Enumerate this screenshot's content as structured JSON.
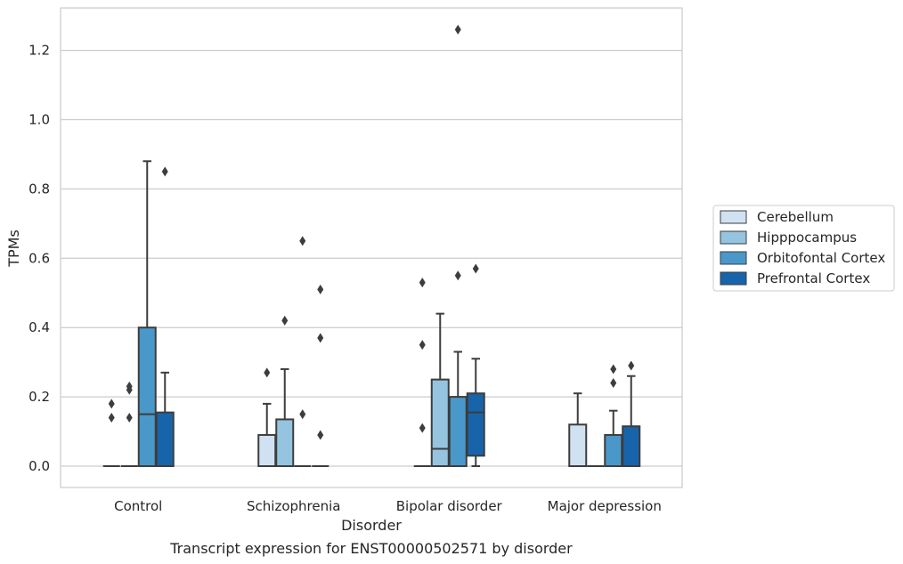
{
  "chart_data": {
    "type": "box",
    "xlabel": "Disorder",
    "ylabel": "TPMs",
    "caption": "Transcript expression for ENST00000502571 by disorder",
    "categories": [
      "Control",
      "Schizophrenia",
      "Bipolar disorder",
      "Major depression"
    ],
    "ylim": [
      -0.06,
      1.325
    ],
    "yticks": [
      0.0,
      0.2,
      0.4,
      0.6,
      0.8,
      1.0,
      1.2
    ],
    "ytick_labels": [
      "0.0",
      "0.2",
      "0.4",
      "0.6",
      "0.8",
      "1.0",
      "1.2"
    ],
    "grid": "horizontal",
    "legend_position": "right",
    "series": [
      {
        "name": "Cerebellum",
        "color": "#d0e1f2",
        "boxes": [
          {
            "q1": 0,
            "median": 0,
            "q3": 0,
            "whislo": 0,
            "whishi": 0,
            "fliers": [
              0.14,
              0.18
            ]
          },
          {
            "q1": 0,
            "median": 0,
            "q3": 0.09,
            "whislo": 0,
            "whishi": 0.18,
            "fliers": [
              0.27
            ]
          },
          {
            "q1": 0,
            "median": 0,
            "q3": 0,
            "whislo": 0,
            "whishi": 0,
            "fliers": [
              0.11,
              0.35,
              0.53
            ]
          },
          {
            "q1": 0,
            "median": 0,
            "q3": 0.12,
            "whislo": 0,
            "whishi": 0.21,
            "fliers": []
          }
        ]
      },
      {
        "name": "Hipppocampus",
        "color": "#94c4df",
        "boxes": [
          {
            "q1": 0,
            "median": 0,
            "q3": 0,
            "whislo": 0,
            "whishi": 0,
            "fliers": [
              0.14,
              0.22,
              0.23
            ]
          },
          {
            "q1": 0,
            "median": 0,
            "q3": 0.135,
            "whislo": 0,
            "whishi": 0.28,
            "fliers": [
              0.42
            ]
          },
          {
            "q1": 0,
            "median": 0.05,
            "q3": 0.25,
            "whislo": 0,
            "whishi": 0.44,
            "fliers": []
          },
          {
            "q1": 0,
            "median": 0,
            "q3": 0,
            "whislo": 0,
            "whishi": 0,
            "fliers": []
          }
        ]
      },
      {
        "name": "Orbitofontal Cortex",
        "color": "#4a98c9",
        "boxes": [
          {
            "q1": 0,
            "median": 0.15,
            "q3": 0.4,
            "whislo": 0,
            "whishi": 0.88,
            "fliers": []
          },
          {
            "q1": 0,
            "median": 0,
            "q3": 0,
            "whislo": 0,
            "whishi": 0,
            "fliers": [
              0.15,
              0.65
            ]
          },
          {
            "q1": 0,
            "median": 0,
            "q3": 0.2,
            "whislo": 0,
            "whishi": 0.33,
            "fliers": [
              0.55,
              1.26
            ]
          },
          {
            "q1": 0,
            "median": 0,
            "q3": 0.09,
            "whislo": 0,
            "whishi": 0.16,
            "fliers": [
              0.24,
              0.28
            ]
          }
        ]
      },
      {
        "name": "Prefrontal Cortex",
        "color": "#1764ab",
        "boxes": [
          {
            "q1": 0,
            "median": 0,
            "q3": 0.155,
            "whislo": 0,
            "whishi": 0.27,
            "fliers": [
              0.85
            ]
          },
          {
            "q1": 0,
            "median": 0,
            "q3": 0,
            "whislo": 0,
            "whishi": 0,
            "fliers": [
              0.09,
              0.37,
              0.51
            ]
          },
          {
            "q1": 0.03,
            "median": 0.155,
            "q3": 0.21,
            "whislo": 0,
            "whishi": 0.31,
            "fliers": [
              0.57
            ]
          },
          {
            "q1": 0,
            "median": 0,
            "q3": 0.115,
            "whislo": 0,
            "whishi": 0.26,
            "fliers": [
              0.29
            ]
          }
        ]
      }
    ]
  }
}
